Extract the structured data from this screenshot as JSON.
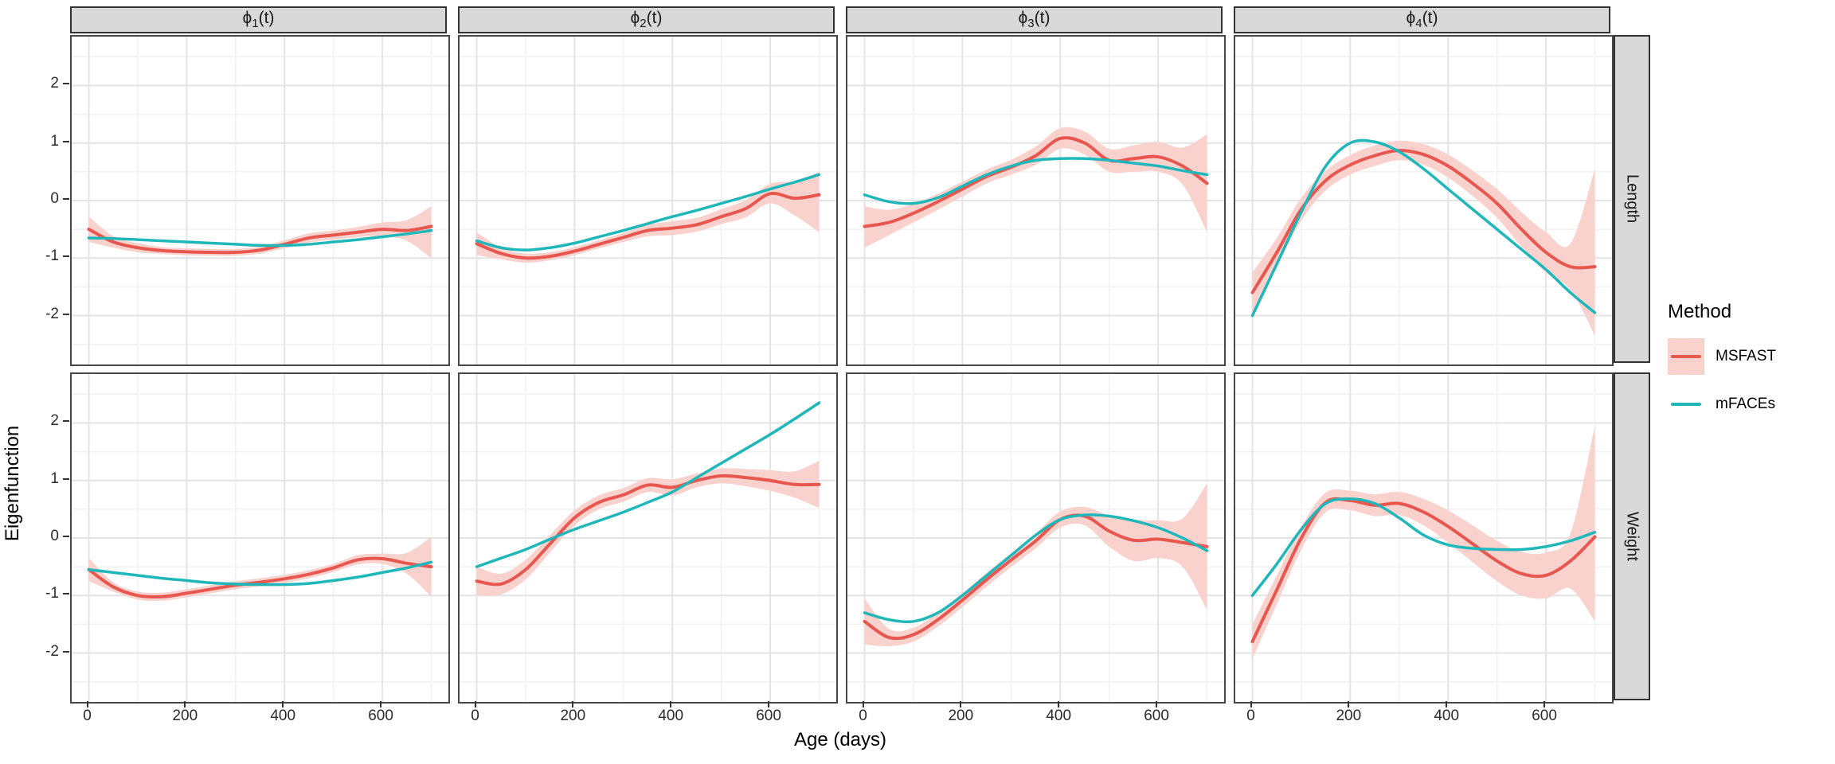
{
  "figure": {
    "y_axis_title": "Eigenfunction",
    "x_axis_title": "Age (days)",
    "legend": {
      "title": "Method",
      "items": [
        {
          "label": "MSFAST",
          "key": "ribbon-line"
        },
        {
          "label": "mFACEs",
          "key": "line"
        }
      ]
    },
    "colors": {
      "msfast_line": "#E8574F",
      "msfast_ribbon": "#F9D2CE",
      "mfaces_line": "#20B7BA",
      "strip_bg": "#D9D9D9",
      "panel_border": "#474747",
      "grid_major": "#E4E4E4",
      "grid_minor": "#F2F2F2",
      "tick_text": "#2b2b2b"
    }
  },
  "chart_data": {
    "type": "line",
    "title": "",
    "xlabel": "Age (days)",
    "ylabel": "Eigenfunction",
    "facet_cols": [
      {
        "base": "ϕ",
        "sub": "1",
        "rest": "(t)"
      },
      {
        "base": "ϕ",
        "sub": "2",
        "rest": "(t)"
      },
      {
        "base": "ϕ",
        "sub": "3",
        "rest": "(t)"
      },
      {
        "base": "ϕ",
        "sub": "4",
        "rest": "(t)"
      }
    ],
    "facet_rows": [
      "Length",
      "Weight"
    ],
    "legend_position": "right",
    "grid": true,
    "series_names": [
      "MSFAST",
      "mFACEs"
    ],
    "x": [
      0,
      50,
      100,
      150,
      200,
      250,
      300,
      350,
      400,
      450,
      500,
      550,
      600,
      650,
      700
    ],
    "x_ticks": [
      0,
      200,
      400,
      600
    ],
    "x_minor": [
      100,
      300,
      500,
      700
    ],
    "y_ticks": [
      2,
      1,
      0,
      -1,
      -2
    ],
    "y_minor": [
      2.5,
      1.5,
      0.5,
      -0.5,
      -1.5,
      -2.5
    ],
    "x_range": [
      -35,
      735
    ],
    "y_range": [
      -2.85,
      2.85
    ],
    "panels": [
      {
        "row": "Length",
        "col": "phi1",
        "msfast": {
          "y": [
            -0.5,
            -0.72,
            -0.82,
            -0.87,
            -0.89,
            -0.9,
            -0.9,
            -0.86,
            -0.76,
            -0.65,
            -0.6,
            -0.55,
            -0.5,
            -0.52,
            -0.45
          ],
          "lower": [
            -0.72,
            -0.82,
            -0.9,
            -0.93,
            -0.95,
            -0.96,
            -0.96,
            -0.92,
            -0.83,
            -0.73,
            -0.68,
            -0.64,
            -0.62,
            -0.7,
            -1.0
          ],
          "upper": [
            -0.28,
            -0.62,
            -0.74,
            -0.81,
            -0.83,
            -0.84,
            -0.84,
            -0.8,
            -0.69,
            -0.57,
            -0.52,
            -0.46,
            -0.38,
            -0.34,
            -0.1
          ]
        },
        "mfaces": {
          "y": [
            -0.65,
            -0.66,
            -0.68,
            -0.7,
            -0.72,
            -0.74,
            -0.76,
            -0.78,
            -0.78,
            -0.76,
            -0.72,
            -0.68,
            -0.63,
            -0.58,
            -0.52
          ]
        }
      },
      {
        "row": "Length",
        "col": "phi2",
        "msfast": {
          "y": [
            -0.75,
            -0.92,
            -1.0,
            -0.97,
            -0.88,
            -0.76,
            -0.64,
            -0.52,
            -0.48,
            -0.42,
            -0.28,
            -0.14,
            0.12,
            0.04,
            0.1
          ],
          "lower": [
            -0.95,
            -1.02,
            -1.08,
            -1.04,
            -0.95,
            -0.83,
            -0.72,
            -0.62,
            -0.6,
            -0.54,
            -0.41,
            -0.29,
            -0.05,
            -0.26,
            -0.55
          ],
          "upper": [
            -0.55,
            -0.82,
            -0.92,
            -0.9,
            -0.81,
            -0.69,
            -0.56,
            -0.42,
            -0.36,
            -0.3,
            -0.15,
            0.01,
            0.29,
            0.34,
            0.5
          ]
        },
        "mfaces": {
          "y": [
            -0.7,
            -0.82,
            -0.86,
            -0.82,
            -0.74,
            -0.63,
            -0.52,
            -0.4,
            -0.28,
            -0.17,
            -0.05,
            0.07,
            0.2,
            0.32,
            0.45
          ]
        }
      },
      {
        "row": "Length",
        "col": "phi3",
        "msfast": {
          "y": [
            -0.45,
            -0.38,
            -0.22,
            -0.02,
            0.2,
            0.42,
            0.58,
            0.78,
            1.08,
            1.0,
            0.7,
            0.73,
            0.76,
            0.6,
            0.3
          ],
          "lower": [
            -0.82,
            -0.6,
            -0.38,
            -0.16,
            0.07,
            0.3,
            0.45,
            0.62,
            0.9,
            0.8,
            0.5,
            0.5,
            0.5,
            0.28,
            -0.55
          ],
          "upper": [
            -0.1,
            -0.16,
            -0.06,
            0.12,
            0.33,
            0.54,
            0.71,
            0.94,
            1.26,
            1.2,
            0.9,
            0.96,
            1.02,
            0.92,
            1.15
          ]
        },
        "mfaces": {
          "y": [
            0.1,
            -0.02,
            -0.05,
            0.05,
            0.25,
            0.45,
            0.6,
            0.7,
            0.73,
            0.73,
            0.7,
            0.65,
            0.6,
            0.52,
            0.45
          ]
        }
      },
      {
        "row": "Length",
        "col": "phi4",
        "msfast": {
          "y": [
            -1.6,
            -0.9,
            -0.15,
            0.35,
            0.62,
            0.78,
            0.87,
            0.8,
            0.6,
            0.3,
            -0.05,
            -0.5,
            -0.9,
            -1.15,
            -1.15
          ],
          "lower": [
            -1.95,
            -1.15,
            -0.35,
            0.18,
            0.45,
            0.6,
            0.7,
            0.62,
            0.4,
            0.08,
            -0.3,
            -0.8,
            -1.25,
            -1.55,
            -2.35
          ],
          "upper": [
            -1.25,
            -0.65,
            0.05,
            0.52,
            0.79,
            0.96,
            1.04,
            0.98,
            0.8,
            0.52,
            0.2,
            -0.2,
            -0.55,
            -0.75,
            0.55
          ]
        },
        "mfaces": {
          "y": [
            -2.0,
            -1.1,
            -0.2,
            0.6,
            1.0,
            1.02,
            0.85,
            0.55,
            0.2,
            -0.15,
            -0.5,
            -0.85,
            -1.2,
            -1.6,
            -1.95
          ]
        }
      },
      {
        "row": "Weight",
        "col": "phi1",
        "msfast": {
          "y": [
            -0.55,
            -0.85,
            -1.0,
            -1.02,
            -0.96,
            -0.89,
            -0.82,
            -0.77,
            -0.71,
            -0.63,
            -0.52,
            -0.38,
            -0.36,
            -0.44,
            -0.5
          ],
          "lower": [
            -0.75,
            -0.93,
            -1.07,
            -1.09,
            -1.03,
            -0.96,
            -0.89,
            -0.84,
            -0.78,
            -0.7,
            -0.59,
            -0.46,
            -0.45,
            -0.62,
            -1.02
          ],
          "upper": [
            -0.35,
            -0.77,
            -0.93,
            -0.95,
            -0.89,
            -0.82,
            -0.75,
            -0.7,
            -0.64,
            -0.56,
            -0.45,
            -0.3,
            -0.27,
            -0.26,
            0.02
          ]
        },
        "mfaces": {
          "y": [
            -0.55,
            -0.6,
            -0.65,
            -0.7,
            -0.74,
            -0.78,
            -0.8,
            -0.81,
            -0.81,
            -0.79,
            -0.74,
            -0.68,
            -0.6,
            -0.52,
            -0.42
          ]
        }
      },
      {
        "row": "Weight",
        "col": "phi2",
        "msfast": {
          "y": [
            -0.75,
            -0.8,
            -0.55,
            -0.1,
            0.35,
            0.62,
            0.75,
            0.92,
            0.88,
            1.0,
            1.08,
            1.05,
            1.0,
            0.93,
            0.93
          ],
          "lower": [
            -1.0,
            -0.98,
            -0.72,
            -0.25,
            0.22,
            0.5,
            0.63,
            0.8,
            0.74,
            0.88,
            0.95,
            0.9,
            0.82,
            0.7,
            0.52
          ],
          "upper": [
            -0.5,
            -0.62,
            -0.38,
            0.05,
            0.48,
            0.74,
            0.87,
            1.04,
            1.02,
            1.12,
            1.21,
            1.2,
            1.18,
            1.16,
            1.34
          ]
        },
        "mfaces": {
          "y": [
            -0.5,
            -0.35,
            -0.2,
            -0.02,
            0.15,
            0.3,
            0.45,
            0.62,
            0.8,
            1.05,
            1.3,
            1.55,
            1.8,
            2.07,
            2.35
          ]
        }
      },
      {
        "row": "Weight",
        "col": "phi3",
        "msfast": {
          "y": [
            -1.45,
            -1.73,
            -1.68,
            -1.42,
            -1.08,
            -0.72,
            -0.38,
            -0.05,
            0.32,
            0.38,
            0.12,
            -0.04,
            -0.02,
            -0.08,
            -0.15
          ],
          "lower": [
            -1.85,
            -1.88,
            -1.8,
            -1.54,
            -1.2,
            -0.84,
            -0.5,
            -0.18,
            0.18,
            0.22,
            -0.15,
            -0.4,
            -0.35,
            -0.5,
            -1.25
          ],
          "upper": [
            -1.05,
            -1.58,
            -1.56,
            -1.3,
            -0.96,
            -0.6,
            -0.26,
            0.08,
            0.46,
            0.54,
            0.39,
            0.32,
            0.31,
            0.34,
            0.95
          ]
        },
        "mfaces": {
          "y": [
            -1.3,
            -1.42,
            -1.45,
            -1.3,
            -1.0,
            -0.65,
            -0.3,
            0.05,
            0.32,
            0.4,
            0.38,
            0.3,
            0.18,
            0.0,
            -0.22
          ]
        }
      },
      {
        "row": "Weight",
        "col": "phi4",
        "msfast": {
          "y": [
            -1.8,
            -0.9,
            0.0,
            0.62,
            0.65,
            0.57,
            0.6,
            0.45,
            0.2,
            -0.1,
            -0.4,
            -0.62,
            -0.65,
            -0.4,
            0.02
          ],
          "lower": [
            -2.1,
            -1.15,
            -0.2,
            0.45,
            0.48,
            0.38,
            0.4,
            0.22,
            -0.08,
            -0.42,
            -0.75,
            -1.0,
            -1.05,
            -0.88,
            -1.45
          ],
          "upper": [
            -1.5,
            -0.65,
            0.2,
            0.79,
            0.82,
            0.76,
            0.8,
            0.68,
            0.48,
            0.22,
            -0.05,
            -0.24,
            -0.25,
            0.08,
            1.95
          ]
        },
        "mfaces": {
          "y": [
            -1.0,
            -0.45,
            0.15,
            0.6,
            0.68,
            0.6,
            0.35,
            0.05,
            -0.12,
            -0.18,
            -0.2,
            -0.2,
            -0.15,
            -0.05,
            0.1
          ]
        }
      }
    ]
  }
}
